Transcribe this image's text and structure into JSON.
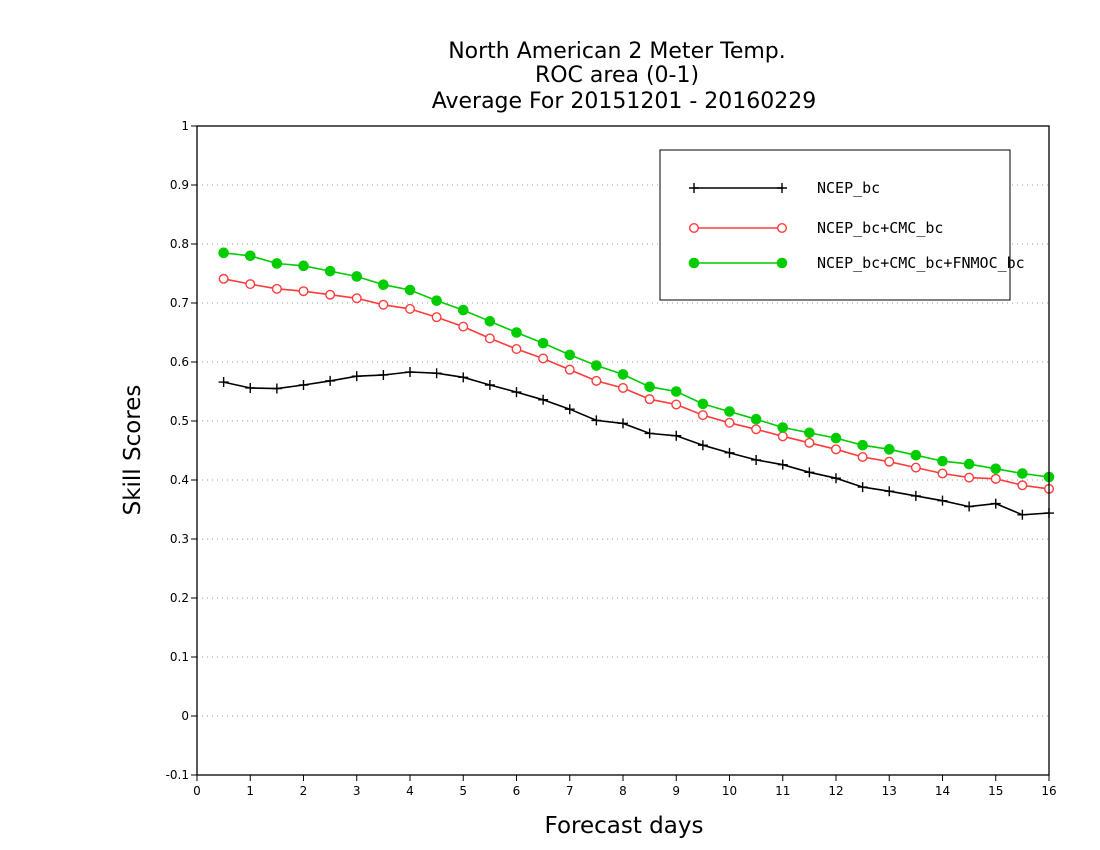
{
  "chart_data": {
    "type": "line",
    "title": [
      "North American 2 Meter Temp.",
      "ROC area (0-1)",
      "Average For 20151201 - 20160229"
    ],
    "xlabel": "Forecast days",
    "ylabel": "Skill Scores",
    "xlim": [
      0,
      16
    ],
    "ylim": [
      -0.1,
      1
    ],
    "x_ticks": [
      0,
      1,
      2,
      3,
      4,
      5,
      6,
      7,
      8,
      9,
      10,
      11,
      12,
      13,
      14,
      15,
      16
    ],
    "y_ticks": [
      -0.1,
      0,
      0.1,
      0.2,
      0.3,
      0.4,
      0.5,
      0.6,
      0.7,
      0.8,
      0.9,
      1
    ],
    "y_tick_labels": [
      "-0.1",
      "0",
      "0.1",
      "0.2",
      "0.3",
      "0.4",
      "0.5",
      "0.6",
      "0.7",
      "0.8",
      "0.9",
      "1"
    ],
    "grid": "horizontal dotted",
    "legend_position": "top-right",
    "x": [
      0.5,
      1,
      1.5,
      2,
      2.5,
      3,
      3.5,
      4,
      4.5,
      5,
      5.5,
      6,
      6.5,
      7,
      7.5,
      8,
      8.5,
      9,
      9.5,
      10,
      10.5,
      11,
      11.5,
      12,
      12.5,
      13,
      13.5,
      14,
      14.5,
      15,
      15.5,
      16
    ],
    "series": [
      {
        "name": "NCEP_bc",
        "color": "#000000",
        "marker": "plus",
        "values": [
          0.566,
          0.556,
          0.555,
          0.561,
          0.568,
          0.576,
          0.578,
          0.583,
          0.581,
          0.574,
          0.561,
          0.549,
          0.536,
          0.52,
          0.501,
          0.496,
          0.479,
          0.475,
          0.459,
          0.446,
          0.434,
          0.426,
          0.413,
          0.403,
          0.388,
          0.381,
          0.373,
          0.365,
          0.355,
          0.36,
          0.341,
          0.344
        ]
      },
      {
        "name": "NCEP_bc+CMC_bc",
        "color": "#ff3b3b",
        "marker": "open-circle",
        "values": [
          0.741,
          0.732,
          0.724,
          0.72,
          0.714,
          0.708,
          0.697,
          0.69,
          0.676,
          0.66,
          0.64,
          0.622,
          0.606,
          0.587,
          0.568,
          0.556,
          0.537,
          0.528,
          0.51,
          0.497,
          0.486,
          0.474,
          0.463,
          0.452,
          0.439,
          0.431,
          0.421,
          0.411,
          0.404,
          0.402,
          0.391,
          0.385
        ]
      },
      {
        "name": "NCEP_bc+CMC_bc+FNMOC_bc",
        "color": "#00cc00",
        "marker": "filled-circle",
        "values": [
          0.785,
          0.78,
          0.767,
          0.763,
          0.754,
          0.745,
          0.731,
          0.722,
          0.704,
          0.688,
          0.669,
          0.65,
          0.632,
          0.612,
          0.594,
          0.579,
          0.558,
          0.55,
          0.529,
          0.516,
          0.503,
          0.489,
          0.48,
          0.471,
          0.459,
          0.452,
          0.442,
          0.432,
          0.427,
          0.419,
          0.411,
          0.405
        ]
      }
    ]
  }
}
